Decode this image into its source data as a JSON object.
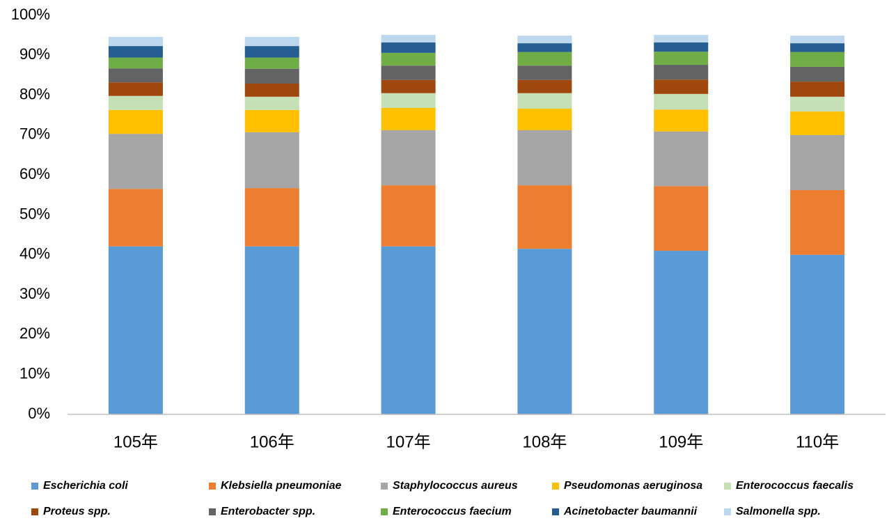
{
  "chart_data": {
    "type": "stacked_bar",
    "categories": [
      "105年",
      "106年",
      "107年",
      "108年",
      "109年",
      "110年"
    ],
    "series": [
      {
        "name": "Escherichia coli",
        "color": "#5b9bd5",
        "values": [
          42.1,
          42.1,
          42.1,
          41.5,
          41.0,
          40.0
        ]
      },
      {
        "name": "Klebsiella pneumoniae",
        "color": "#ed7d31",
        "values": [
          14.4,
          14.6,
          15.3,
          15.9,
          16.2,
          16.2
        ]
      },
      {
        "name": "Staphylococcus aureus",
        "color": "#a5a5a5",
        "values": [
          13.8,
          14.0,
          13.8,
          13.8,
          13.7,
          13.8
        ]
      },
      {
        "name": "Pseudomonas aeruginosa",
        "color": "#ffc000",
        "values": [
          6.0,
          5.6,
          5.6,
          5.4,
          5.5,
          5.9
        ]
      },
      {
        "name": "Enterococcus faecalis",
        "color": "#c5e0b4",
        "values": [
          3.5,
          3.3,
          3.7,
          3.9,
          3.9,
          3.7
        ]
      },
      {
        "name": "Proteus spp.",
        "color": "#9e480e",
        "values": [
          3.4,
          3.3,
          3.3,
          3.3,
          3.6,
          3.8
        ]
      },
      {
        "name": "Enterobacter spp.",
        "color": "#636363",
        "values": [
          3.5,
          3.7,
          3.6,
          3.6,
          3.7,
          3.7
        ]
      },
      {
        "name": "Enterococcus faecium",
        "color": "#70ad47",
        "values": [
          2.7,
          2.8,
          3.2,
          3.4,
          3.3,
          3.7
        ]
      },
      {
        "name": "Acinetobacter baumannii",
        "color": "#255e91",
        "values": [
          2.9,
          2.9,
          2.6,
          2.2,
          2.3,
          2.2
        ]
      },
      {
        "name": "Salmonella spp.",
        "color": "#bdd7ee",
        "values": [
          2.3,
          2.3,
          1.9,
          1.9,
          1.9,
          1.9
        ]
      }
    ],
    "ylim": [
      0,
      100
    ],
    "yticks": [
      {
        "value": 0,
        "label": "0%"
      },
      {
        "value": 10,
        "label": "10%"
      },
      {
        "value": 20,
        "label": "20%"
      },
      {
        "value": 30,
        "label": "30%"
      },
      {
        "value": 40,
        "label": "40%"
      },
      {
        "value": 50,
        "label": "50%"
      },
      {
        "value": 60,
        "label": "60%"
      },
      {
        "value": 70,
        "label": "70%"
      },
      {
        "value": 80,
        "label": "80%"
      },
      {
        "value": 90,
        "label": "90%"
      },
      {
        "value": 100,
        "label": "100%"
      }
    ],
    "grid": false,
    "legend": "bottom"
  }
}
